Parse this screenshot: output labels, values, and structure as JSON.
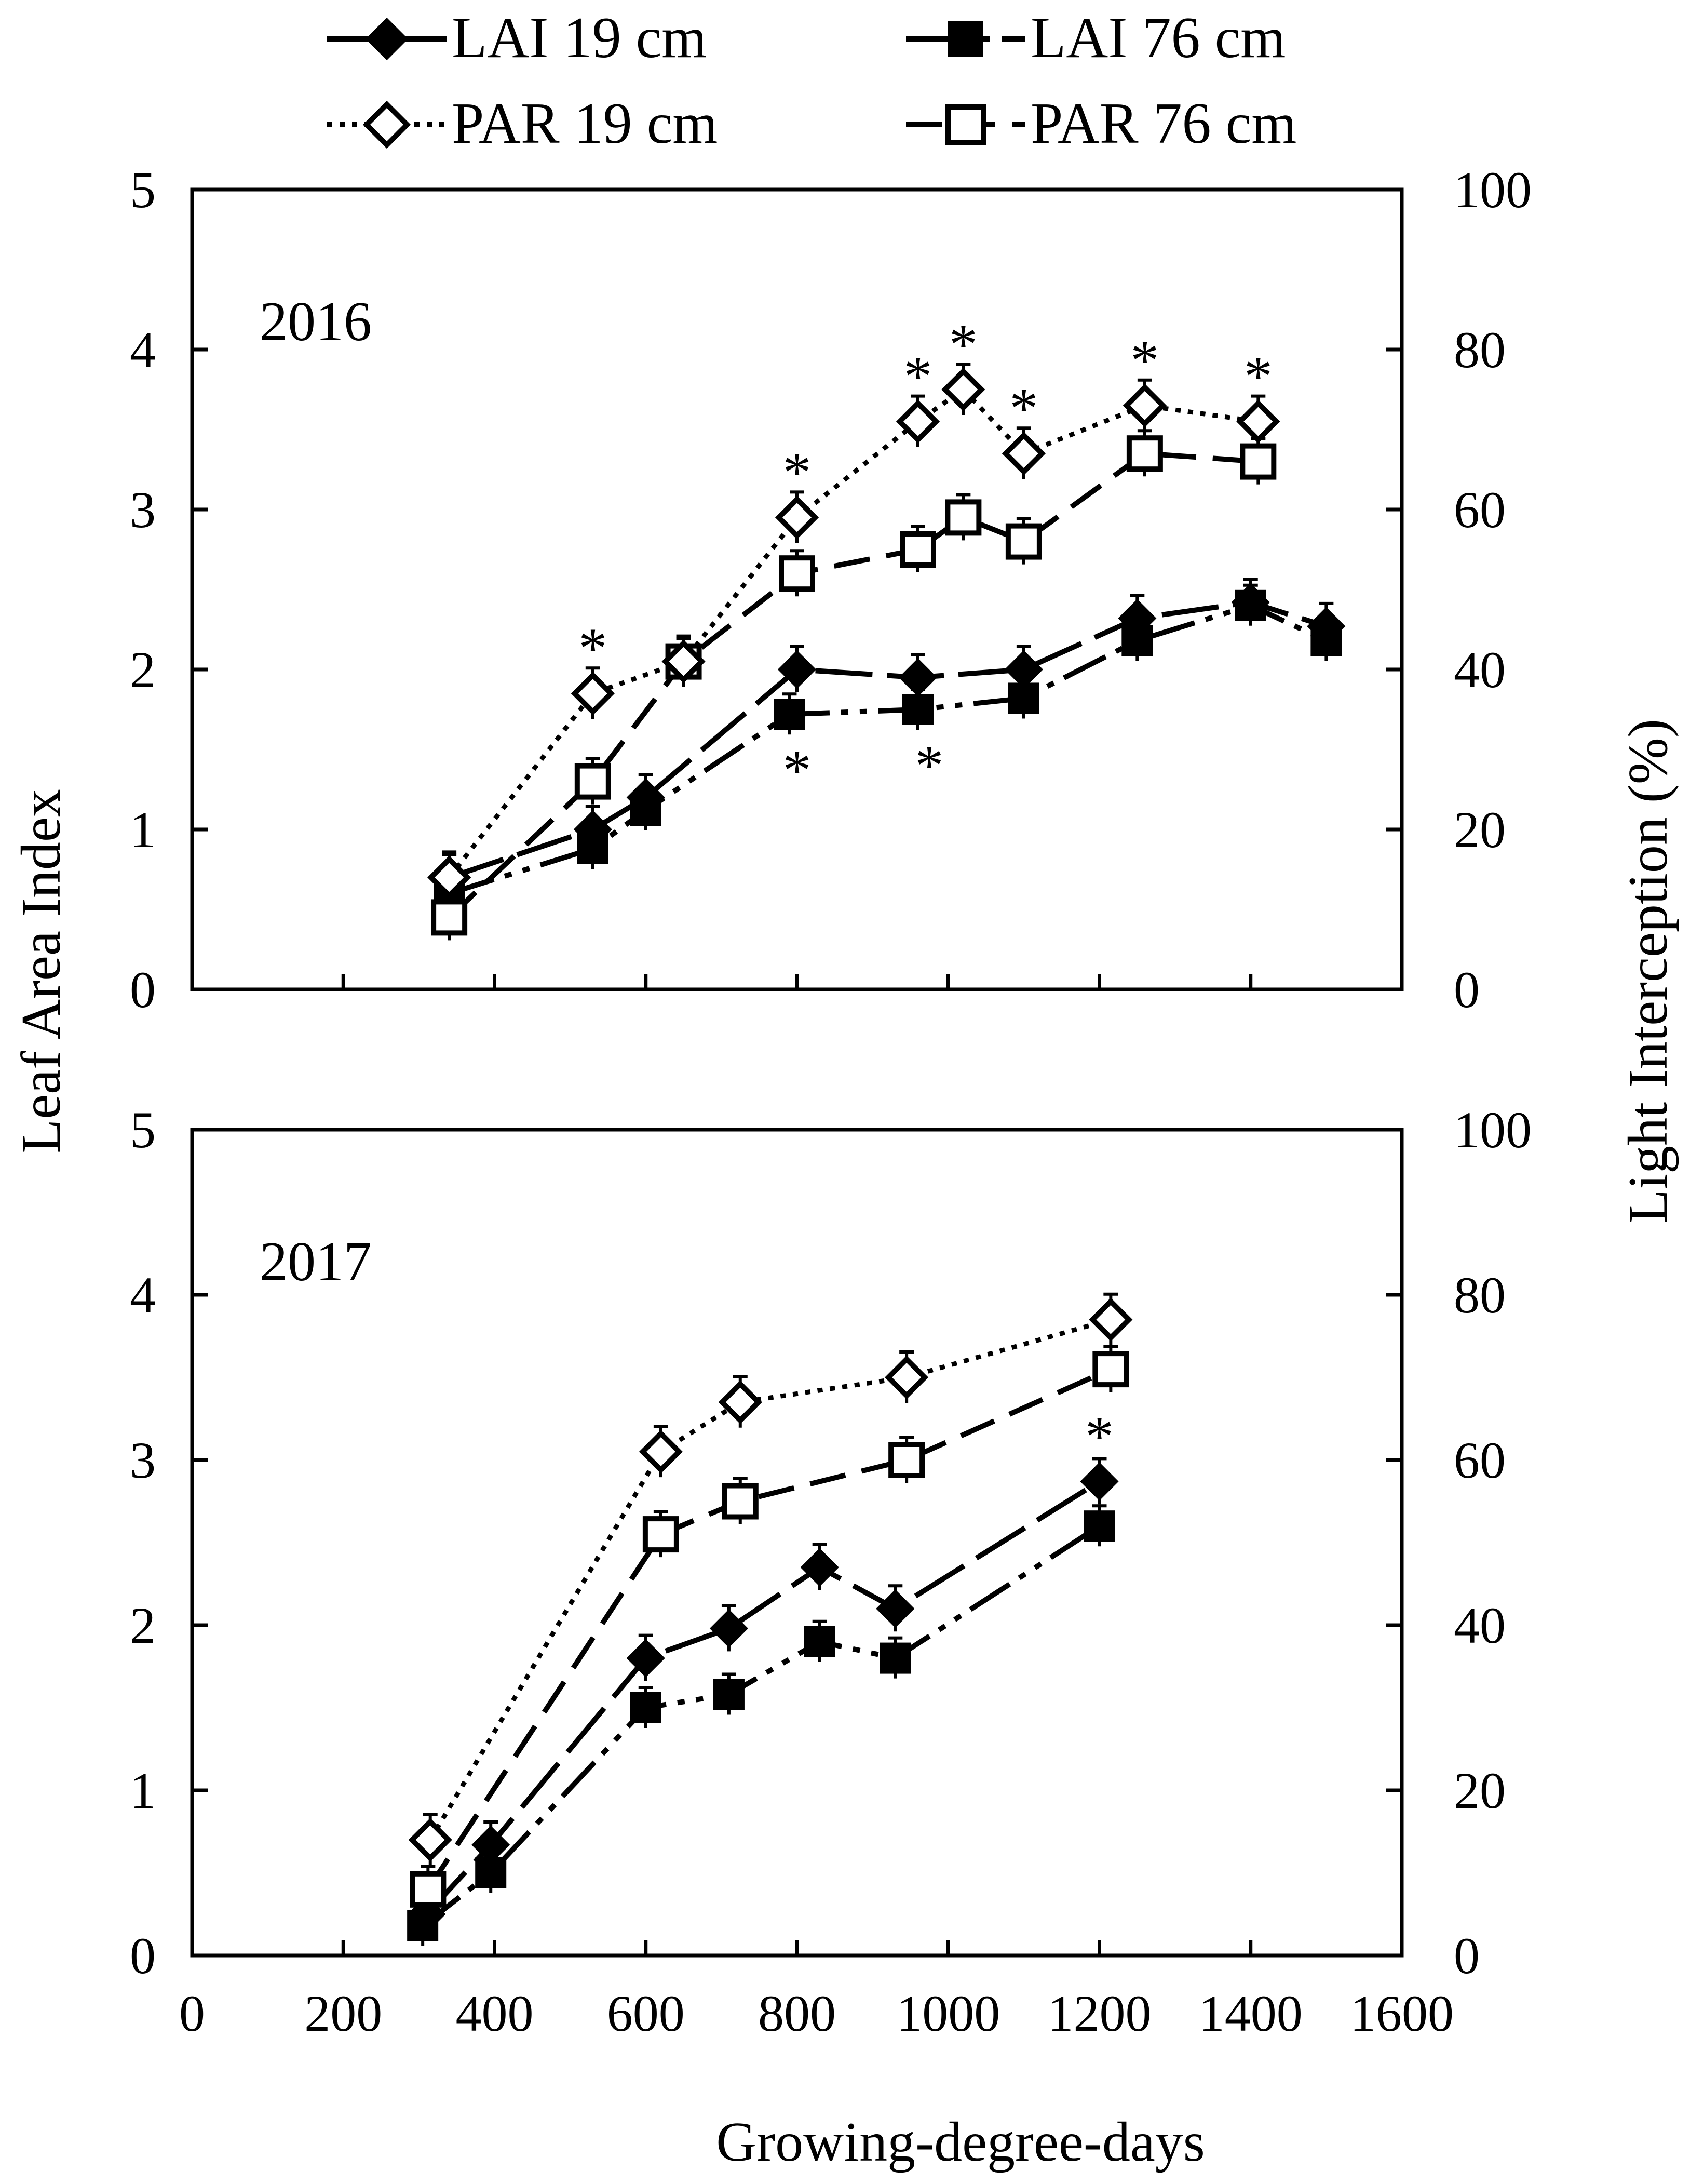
{
  "chart_data": {
    "type": "line",
    "xlabel": "Growing-degree-days",
    "ylabel_left": "Leaf Area Index",
    "ylabel_right": "Light Interception (%)",
    "xlim": [
      0,
      1600
    ],
    "xticks": [
      0,
      200,
      400,
      600,
      800,
      1000,
      1200,
      1400,
      1600
    ],
    "ylim_left": [
      0,
      5
    ],
    "yticks_left": [
      0,
      1,
      2,
      3,
      4,
      5
    ],
    "ylim_right": [
      0,
      100
    ],
    "yticks_right": [
      0,
      20,
      40,
      60,
      80,
      100
    ],
    "legend": [
      {
        "key": "lai19",
        "label": "LAI 19 cm"
      },
      {
        "key": "lai76",
        "label": "LAI 76 cm"
      },
      {
        "key": "par19",
        "label": "PAR 19 cm"
      },
      {
        "key": "par76",
        "label": "PAR 76 cm"
      }
    ],
    "significance_marker": "*",
    "panels": [
      {
        "year": "2016",
        "series": [
          {
            "key": "lai19",
            "name": "LAI 19 cm",
            "axis": "left",
            "x": [
              340,
              530,
              600,
              800,
              960,
              1100,
              1250,
              1400,
              1500
            ],
            "y": [
              0.7,
              1.0,
              1.2,
              2.0,
              1.95,
              2.0,
              2.32,
              2.42,
              2.27
            ]
          },
          {
            "key": "lai76",
            "name": "LAI 76 cm",
            "axis": "left",
            "x": [
              340,
              530,
              600,
              790,
              960,
              1100,
              1250,
              1400,
              1500
            ],
            "y": [
              0.6,
              0.88,
              1.12,
              1.72,
              1.75,
              1.82,
              2.18,
              2.4,
              2.18
            ]
          },
          {
            "key": "par19",
            "name": "PAR 19 cm",
            "axis": "right",
            "x": [
              340,
              530,
              650,
              800,
              960,
              1020,
              1100,
              1260,
              1410
            ],
            "y": [
              14,
              37,
              41,
              59,
              71,
              75,
              67,
              73,
              71
            ]
          },
          {
            "key": "par76",
            "name": "PAR 76 cm",
            "axis": "right",
            "x": [
              340,
              530,
              650,
              800,
              960,
              1020,
              1100,
              1260,
              1410
            ],
            "y": [
              9,
              26,
              41,
              52,
              55,
              59,
              56,
              67,
              66
            ]
          }
        ],
        "significance": [
          {
            "x": 530,
            "y_right": 37,
            "pos": "above"
          },
          {
            "x": 800,
            "y_right": 59,
            "pos": "above"
          },
          {
            "x": 960,
            "y_right": 71,
            "pos": "above"
          },
          {
            "x": 1020,
            "y_right": 75,
            "pos": "above"
          },
          {
            "x": 1100,
            "y_right": 67,
            "pos": "above"
          },
          {
            "x": 1260,
            "y_right": 73,
            "pos": "above"
          },
          {
            "x": 1410,
            "y_right": 71,
            "pos": "above"
          },
          {
            "x": 800,
            "y_left": 1.72,
            "pos": "below"
          },
          {
            "x": 975,
            "y_left": 1.75,
            "pos": "below"
          }
        ]
      },
      {
        "year": "2017",
        "series": [
          {
            "key": "lai19",
            "name": "LAI 19 cm",
            "axis": "left",
            "x": [
              310,
              395,
              600,
              710,
              830,
              930,
              1200
            ],
            "y": [
              0.25,
              0.67,
              1.8,
              1.98,
              2.35,
              2.1,
              2.87
            ]
          },
          {
            "key": "lai76",
            "name": "LAI 76 cm",
            "axis": "left",
            "x": [
              305,
              395,
              600,
              710,
              830,
              930,
              1200
            ],
            "y": [
              0.18,
              0.5,
              1.5,
              1.58,
              1.9,
              1.8,
              2.6
            ]
          },
          {
            "key": "par19",
            "name": "PAR 19 cm",
            "axis": "right",
            "x": [
              315,
              620,
              725,
              945,
              1215
            ],
            "y": [
              14,
              61,
              67,
              70,
              77
            ]
          },
          {
            "key": "par76",
            "name": "PAR 76 cm",
            "axis": "right",
            "x": [
              312,
              620,
              725,
              945,
              1215
            ],
            "y": [
              8,
              51,
              55,
              60,
              71
            ]
          }
        ],
        "significance": [
          {
            "x": 1200,
            "y_left": 2.87,
            "pos": "above"
          }
        ]
      }
    ]
  }
}
